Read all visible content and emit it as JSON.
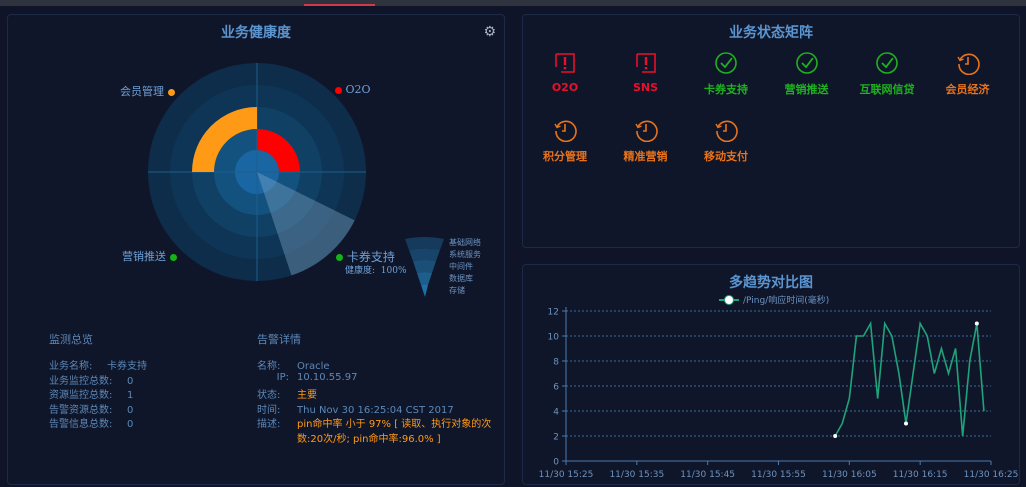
{
  "health": {
    "title": "业务健康度",
    "settings_icon": "gear-icon",
    "labels": [
      {
        "name": "会员管理",
        "color": "#ff9a17"
      },
      {
        "name": "O2O",
        "color": "#ff0000"
      },
      {
        "name": "营销推送",
        "color": "#16b216"
      },
      {
        "name": "卡券支持",
        "color": "#16b216"
      }
    ],
    "selected": {
      "name": "卡券支持",
      "health_label": "健康度:",
      "health_value": "100%"
    },
    "layers": [
      "基础网络",
      "系统服务",
      "中间件",
      "数据库",
      "存储"
    ]
  },
  "overview": {
    "title": "监测总览",
    "rows": [
      {
        "label": "业务名称:",
        "value": "卡券支持"
      },
      {
        "label": "业务监控总数:",
        "value": "0"
      },
      {
        "label": "资源监控总数:",
        "value": "1"
      },
      {
        "label": "告警资源总数:",
        "value": "0"
      },
      {
        "label": "告警信息总数:",
        "value": "0"
      }
    ]
  },
  "alarm": {
    "title": "告警详情",
    "name_label": "名称:",
    "name": "Oracle",
    "ip_label": "IP:",
    "ip": "10.10.55.97",
    "status_label": "状态:",
    "status": "主要",
    "time_label": "时间:",
    "time": "Thu Nov 30 16:25:04 CST 2017",
    "desc_label": "描述:",
    "desc_line1": "pin命中率 小于 97% [ 读取、执行对象的次",
    "desc_line2": "数:20次/秒; pin命中率:96.0% ]"
  },
  "matrix": {
    "title": "业务状态矩阵",
    "colors": {
      "error": "#e8102a",
      "ok": "#1fb11f",
      "pending": "#e8731a"
    },
    "items": [
      {
        "label": "O2O",
        "status": "error",
        "icon": "alert-icon"
      },
      {
        "label": "SNS",
        "status": "error",
        "icon": "alert-icon"
      },
      {
        "label": "卡券支持",
        "status": "ok",
        "icon": "check-circle-icon"
      },
      {
        "label": "营销推送",
        "status": "ok",
        "icon": "check-circle-icon"
      },
      {
        "label": "互联网信贷",
        "status": "ok",
        "icon": "check-circle-icon"
      },
      {
        "label": "会员经济",
        "status": "pending",
        "icon": "history-clock-icon"
      },
      {
        "label": "积分管理",
        "status": "pending",
        "icon": "history-clock-icon"
      },
      {
        "label": "精准营销",
        "status": "pending",
        "icon": "history-clock-icon"
      },
      {
        "label": "移动支付",
        "status": "pending",
        "icon": "history-clock-icon"
      }
    ]
  },
  "chart_data": {
    "type": "line",
    "title": "多趋势对比图",
    "series": [
      {
        "name": "/Ping/响应时间(毫秒)",
        "color": "#1fa37a",
        "x": [
          "16:03",
          "16:04",
          "16:05",
          "16:06",
          "16:07",
          "16:08",
          "16:09",
          "16:10",
          "16:11",
          "16:12",
          "16:13",
          "16:14",
          "16:15",
          "16:16",
          "16:17",
          "16:18",
          "16:19",
          "16:20",
          "16:21",
          "16:22",
          "16:23",
          "16:24"
        ],
        "values": [
          2,
          3,
          5,
          10,
          10,
          11,
          5,
          11,
          10,
          7,
          3,
          7,
          11,
          10,
          7,
          9,
          7,
          9,
          2,
          8,
          11,
          4
        ]
      }
    ],
    "xticks": [
      "11/30 15:25",
      "11/30 15:35",
      "11/30 15:45",
      "11/30 15:55",
      "11/30 16:05",
      "11/30 16:15",
      "11/30 16:25"
    ],
    "xlim": [
      "15:25",
      "16:25"
    ],
    "yticks": [
      0,
      2,
      4,
      6,
      8,
      10,
      12
    ],
    "ylim": [
      0,
      12
    ],
    "grid": "horizontal dotted",
    "legend": "top"
  }
}
